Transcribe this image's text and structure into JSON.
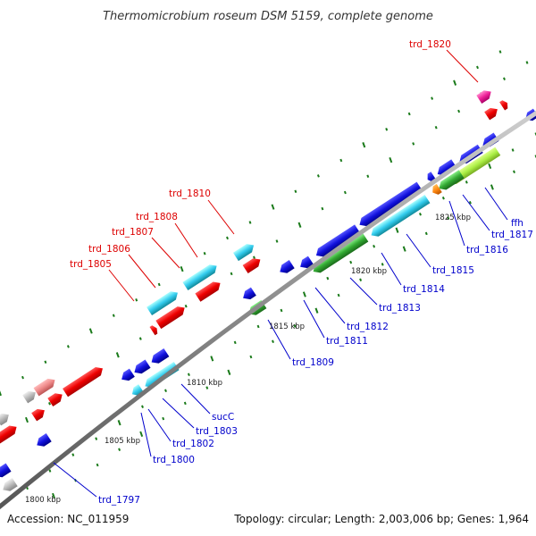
{
  "title": "Thermomicrobium roseum DSM 5159, complete genome",
  "accession": "Accession: NC_011959",
  "summary": "Topology: circular; Length: 2,003,006 bp; Genes: 1,964",
  "colors": {
    "backbone": "#8a8a8a",
    "forward_label": "#dd0000",
    "reverse_label": "#0000cc",
    "tick": "#1a7a1a"
  },
  "scale_labels": [
    "1800 kbp",
    "1805 kbp",
    "1810 kbp",
    "1815 kbp",
    "1820 kbp",
    "1825 kbp"
  ],
  "forward_genes": [
    "trd_1805",
    "trd_1806",
    "trd_1807",
    "trd_1808",
    "trd_1810",
    "trd_1820"
  ],
  "reverse_genes": [
    "trd_1797",
    "trd_1800",
    "trd_1802",
    "trd_1803",
    "sucC",
    "trd_1809",
    "trd_1811",
    "trd_1812",
    "trd_1813",
    "trd_1814",
    "trd_1815",
    "trd_1816",
    "trd_1817",
    "ffh"
  ],
  "feature_colors": [
    "red",
    "blue",
    "cyan",
    "green",
    "lime",
    "magenta",
    "orange",
    "gray",
    "pink"
  ]
}
